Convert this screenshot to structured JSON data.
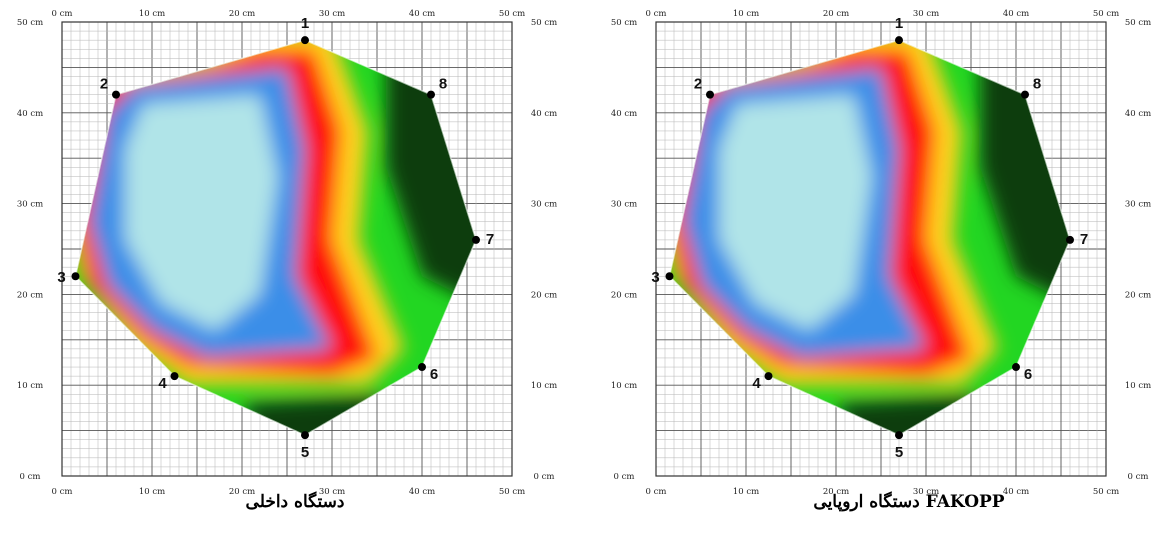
{
  "chart_data": [
    {
      "type": "heatmap",
      "caption": "دستگاه داخلی",
      "x_ticks": [
        "0 cm",
        "10 cm",
        "20 cm",
        "30 cm",
        "40 cm",
        "50 cm"
      ],
      "y_ticks": [
        "0 cm",
        "10 cm",
        "20 cm",
        "30 cm",
        "40 cm",
        "50 cm"
      ],
      "xlim": [
        0,
        50
      ],
      "ylim": [
        0,
        50
      ],
      "grid": true,
      "sensors": [
        {
          "label": "1",
          "x": 27,
          "y": 48
        },
        {
          "label": "2",
          "x": 6,
          "y": 42
        },
        {
          "label": "3",
          "x": 1.5,
          "y": 22
        },
        {
          "label": "4",
          "x": 12.5,
          "y": 11
        },
        {
          "label": "5",
          "x": 27,
          "y": 4.5
        },
        {
          "label": "6",
          "x": 40,
          "y": 12
        },
        {
          "label": "7",
          "x": 46,
          "y": 26
        },
        {
          "label": "8",
          "x": 41,
          "y": 42
        }
      ],
      "colors": [
        "#b0e4e8",
        "#3a8ee8",
        "#ff1010",
        "#ffd21e",
        "#22d622",
        "#0c3d0c"
      ]
    },
    {
      "type": "heatmap",
      "caption": "دستگاه اروپایی FAKOPP",
      "x_ticks": [
        "0 cm",
        "10 cm",
        "20 cm",
        "30 cm",
        "40 cm",
        "50 cm"
      ],
      "y_ticks": [
        "0 cm",
        "10 cm",
        "20 cm",
        "30 cm",
        "40 cm",
        "50 cm"
      ],
      "xlim": [
        0,
        50
      ],
      "ylim": [
        0,
        50
      ],
      "grid": true,
      "sensors": [
        {
          "label": "1",
          "x": 27,
          "y": 48
        },
        {
          "label": "2",
          "x": 6,
          "y": 42
        },
        {
          "label": "3",
          "x": 1.5,
          "y": 22
        },
        {
          "label": "4",
          "x": 12.5,
          "y": 11
        },
        {
          "label": "5",
          "x": 27,
          "y": 4.5
        },
        {
          "label": "6",
          "x": 40,
          "y": 12
        },
        {
          "label": "7",
          "x": 46,
          "y": 26
        },
        {
          "label": "8",
          "x": 41,
          "y": 42
        }
      ],
      "colors": [
        "#b0e4e8",
        "#3a8ee8",
        "#ff1010",
        "#ffd21e",
        "#22d622",
        "#0c3d0c"
      ]
    }
  ]
}
